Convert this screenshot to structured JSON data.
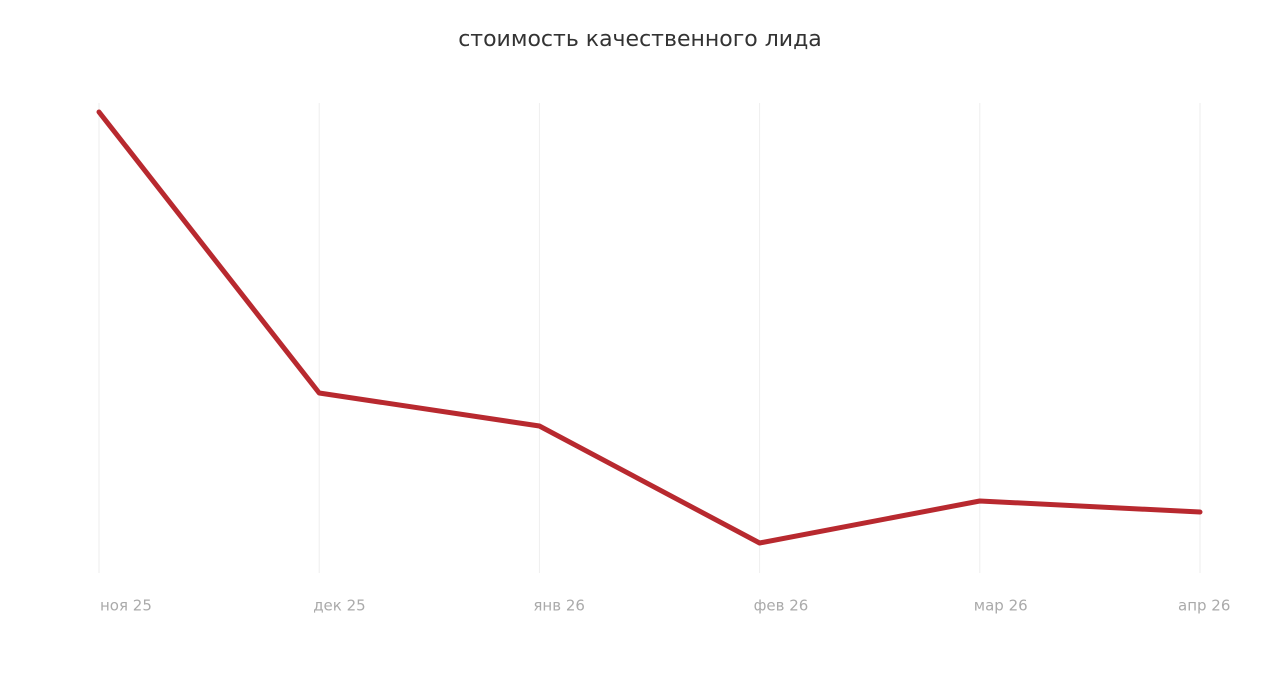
{
  "chart_data": {
    "type": "line",
    "title": "стоимость качественного лида",
    "categories": [
      "ноя 25",
      "дек 25",
      "янв 26",
      "фев 26",
      "мар 26",
      "апр 26"
    ],
    "values": [
      461,
      180,
      147,
      30,
      72,
      61
    ],
    "color": "#b8292f",
    "ylim": [
      0,
      470
    ],
    "grid": true
  }
}
